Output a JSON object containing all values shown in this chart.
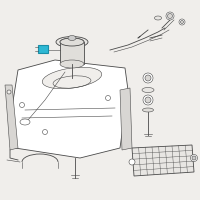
{
  "bg_color": "#f0eeeb",
  "line_color": "#4a4a4a",
  "highlight_color": "#2eb8d4",
  "figsize": [
    2.0,
    2.0
  ],
  "dpi": 100
}
